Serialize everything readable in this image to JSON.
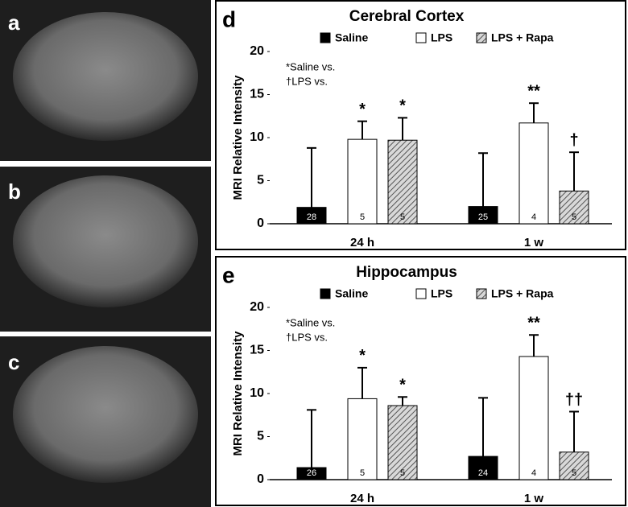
{
  "image_labels": [
    "a",
    "b",
    "c"
  ],
  "chart_data": [
    {
      "type": "bar",
      "panel_label": "d",
      "title": "Cerebral Cortex",
      "y_label": "MRI Relative Intensity",
      "annotations": [
        "*Saline vs.",
        "†LPS vs."
      ],
      "categories": [
        "24 h",
        "1 w"
      ],
      "ylim": [
        0,
        20
      ],
      "yticks": [
        0,
        5,
        10,
        15,
        20
      ],
      "series": [
        {
          "name": "Saline",
          "color": "#000000",
          "values": [
            1.9,
            2.0
          ],
          "errors": [
            6.9,
            6.2
          ],
          "n": [
            28,
            25
          ],
          "significance": [
            null,
            null
          ]
        },
        {
          "name": "LPS",
          "color": "#ffffff",
          "values": [
            9.8,
            11.7
          ],
          "errors": [
            2.1,
            2.3
          ],
          "n": [
            5,
            4
          ],
          "significance": [
            "*",
            "**"
          ]
        },
        {
          "name": "LPS + Rapa",
          "color": "#9a9a9a",
          "hatch": true,
          "values": [
            9.7,
            3.8
          ],
          "errors": [
            2.6,
            4.5
          ],
          "n": [
            5,
            5
          ],
          "significance": [
            "*",
            "†"
          ]
        }
      ]
    },
    {
      "type": "bar",
      "panel_label": "e",
      "title": "Hippocampus",
      "y_label": "MRI Relative Intensity",
      "annotations": [
        "*Saline vs.",
        "†LPS vs."
      ],
      "categories": [
        "24 h",
        "1 w"
      ],
      "ylim": [
        0,
        20
      ],
      "yticks": [
        0,
        5,
        10,
        15,
        20
      ],
      "series": [
        {
          "name": "Saline",
          "color": "#000000",
          "values": [
            1.4,
            2.7
          ],
          "errors": [
            6.7,
            6.8
          ],
          "n": [
            26,
            24
          ],
          "significance": [
            null,
            null
          ]
        },
        {
          "name": "LPS",
          "color": "#ffffff",
          "values": [
            9.4,
            14.3
          ],
          "errors": [
            3.6,
            2.5
          ],
          "n": [
            5,
            4
          ],
          "significance": [
            "*",
            "**"
          ]
        },
        {
          "name": "LPS + Rapa",
          "color": "#9a9a9a",
          "hatch": true,
          "values": [
            8.6,
            3.2
          ],
          "errors": [
            1.0,
            4.7
          ],
          "n": [
            5,
            5
          ],
          "significance": [
            "*",
            "††"
          ]
        }
      ]
    }
  ]
}
